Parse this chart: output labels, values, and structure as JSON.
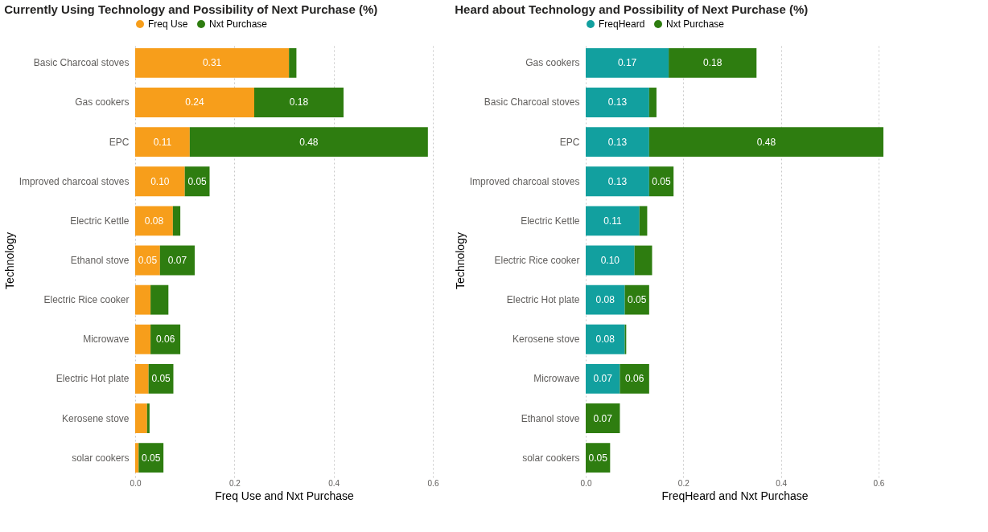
{
  "chart_data": [
    {
      "type": "bar",
      "orientation": "horizontal",
      "stacked": true,
      "title": "Currently Using Technology and Possibility of Next Purchase (%)",
      "xlabel": "Freq Use and Nxt Purchase",
      "ylabel": "Technology",
      "legend": "top left",
      "grid": "x",
      "categories": [
        "Basic Charcoal stoves",
        "Gas cookers",
        "EPC",
        "Improved charcoal stoves",
        "Electric Kettle",
        "Ethanol stove",
        "Electric Rice cooker",
        "Microwave",
        "Electric Hot plate",
        "Kerosene stove",
        "solar cookers"
      ],
      "xlim": [
        0,
        0.6
      ],
      "xticks": [
        {
          "value": 0,
          "label": "0.0"
        },
        {
          "value": 0.2,
          "label": "0.2"
        },
        {
          "value": 0.4,
          "label": "0.4"
        },
        {
          "value": 0.6,
          "label": "0.6"
        }
      ],
      "series": [
        {
          "name": "Freq Use",
          "color": "#f79e1b",
          "values": [
            0.31,
            0.24,
            0.11,
            0.1,
            0.076,
            0.05,
            0.031,
            0.031,
            0.027,
            0.024,
            0.007
          ],
          "value_labels": [
            "0.31",
            "0.24",
            "0.11",
            "0.10",
            "0.08",
            "0.05",
            null,
            null,
            null,
            null,
            null
          ]
        },
        {
          "name": "Nxt Purchase",
          "color": "#2e7d10",
          "values": [
            0.015,
            0.18,
            0.48,
            0.05,
            0.015,
            0.07,
            0.036,
            0.06,
            0.05,
            0.005,
            0.05
          ],
          "value_labels": [
            null,
            "0.18",
            "0.48",
            "0.05",
            null,
            "0.07",
            null,
            "0.06",
            "0.05",
            null,
            "0.05"
          ]
        }
      ]
    },
    {
      "type": "bar",
      "orientation": "horizontal",
      "stacked": true,
      "title": "Heard about Technology and Possibility of Next Purchase (%)",
      "xlabel": "FreqHeard and Nxt Purchase",
      "ylabel": "Technology",
      "legend": "top left",
      "grid": "x",
      "categories": [
        "Gas cookers",
        "Basic Charcoal stoves",
        "EPC",
        "Improved charcoal stoves",
        "Electric Kettle",
        "Electric Rice cooker",
        "Electric Hot plate",
        "Kerosene stove",
        "Microwave",
        "Ethanol stove",
        "solar cookers"
      ],
      "xlim": [
        0,
        0.61
      ],
      "xticks": [
        {
          "value": 0,
          "label": "0.0"
        },
        {
          "value": 0.2,
          "label": "0.2"
        },
        {
          "value": 0.4,
          "label": "0.4"
        },
        {
          "value": 0.6,
          "label": "0.6"
        }
      ],
      "series": [
        {
          "name": "FreqHeard",
          "color": "#12a09f",
          "values": [
            0.17,
            0.13,
            0.13,
            0.13,
            0.11,
            0.1,
            0.08,
            0.08,
            0.07,
            0,
            0
          ],
          "value_labels": [
            "0.17",
            "0.13",
            "0.13",
            "0.13",
            "0.11",
            "0.10",
            "0.08",
            "0.08",
            "0.07",
            null,
            null
          ]
        },
        {
          "name": "Nxt Purchase",
          "color": "#2e7d10",
          "values": [
            0.18,
            0.015,
            0.48,
            0.05,
            0.016,
            0.036,
            0.05,
            0.003,
            0.06,
            0.07,
            0.05
          ],
          "value_labels": [
            "0.18",
            null,
            "0.48",
            "0.05",
            null,
            null,
            "0.05",
            null,
            "0.06",
            "0.07",
            "0.05"
          ]
        }
      ]
    }
  ]
}
